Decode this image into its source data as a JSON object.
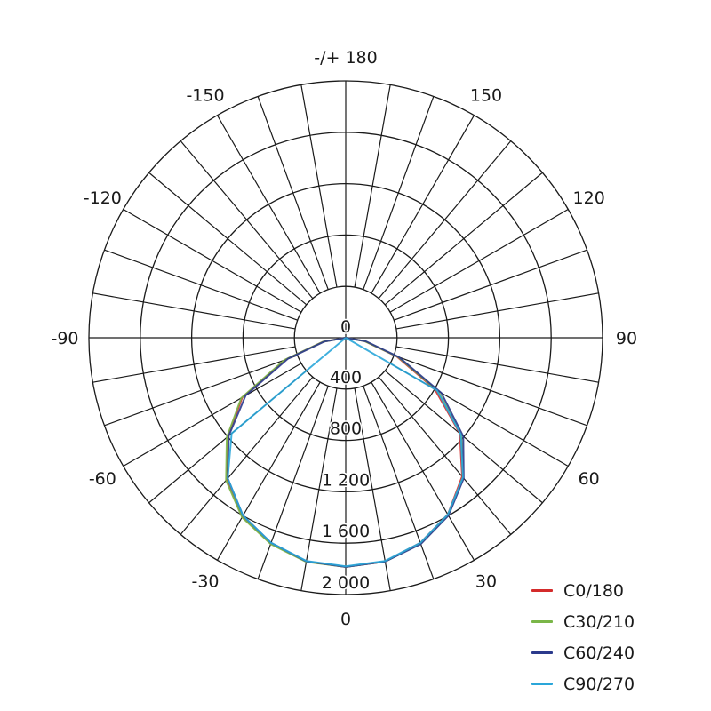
{
  "chart_data": {
    "type": "polar",
    "title": "",
    "radial_axis": {
      "ticks": [
        0,
        400,
        800,
        1200,
        1600,
        2000
      ],
      "tick_labels": [
        "0",
        "400",
        "800",
        "1 200",
        "1 600",
        "2 000"
      ],
      "range": [
        0,
        2000
      ]
    },
    "angular_axis": {
      "grid_step_deg": 10,
      "labels": [
        {
          "angle": 0,
          "text": "0"
        },
        {
          "angle": 30,
          "text": "30"
        },
        {
          "angle": 60,
          "text": "60"
        },
        {
          "angle": 90,
          "text": "90"
        },
        {
          "angle": 120,
          "text": "120"
        },
        {
          "angle": 150,
          "text": "150"
        },
        {
          "angle": 180,
          "text": "-/+ 180"
        },
        {
          "angle": -150,
          "text": "-150"
        },
        {
          "angle": -120,
          "text": "-120"
        },
        {
          "angle": -90,
          "text": "-90"
        },
        {
          "angle": -60,
          "text": "-60"
        },
        {
          "angle": -30,
          "text": "-30"
        }
      ]
    },
    "gamma": [
      0,
      10,
      20,
      30,
      40,
      50,
      60,
      70,
      80,
      90
    ],
    "series": [
      {
        "name": "C0/180",
        "color": "#d42b2b",
        "positive": [
          1785,
          1770,
          1700,
          1590,
          1410,
          1160,
          800,
          420,
          150,
          0
        ],
        "negative": [
          1785,
          1770,
          1705,
          1610,
          1440,
          1200,
          930,
          500,
          180,
          0
        ]
      },
      {
        "name": "C30/210",
        "color": "#7ab648",
        "positive": [
          1785,
          1770,
          1705,
          1595,
          1420,
          1175,
          830,
          430,
          150,
          0
        ],
        "negative": [
          1785,
          1772,
          1710,
          1615,
          1450,
          1210,
          940,
          510,
          180,
          0
        ]
      },
      {
        "name": "C60/240",
        "color": "#2b3a8c",
        "positive": [
          1785,
          1770,
          1710,
          1600,
          1430,
          1195,
          860,
          440,
          160,
          0
        ],
        "negative": [
          1785,
          1768,
          1700,
          1600,
          1430,
          1190,
          900,
          480,
          170,
          0
        ]
      },
      {
        "name": "C90/270",
        "color": "#2aa6d9",
        "positive": [
          1780,
          1765,
          1700,
          1590,
          1420,
          1170,
          820,
          0,
          0,
          0
        ],
        "negative": [
          1780,
          1765,
          1700,
          1600,
          1430,
          1160,
          0,
          0,
          0,
          0
        ]
      }
    ],
    "grid": true,
    "legend": "bottom-right"
  }
}
